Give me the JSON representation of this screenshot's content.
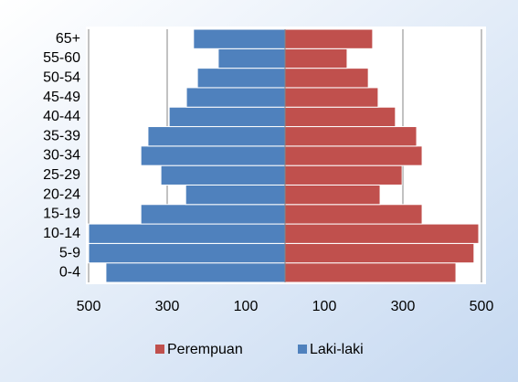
{
  "chart_data": {
    "type": "population-pyramid",
    "categories": [
      "0-4",
      "5-9",
      "10-14",
      "15-19",
      "20-24",
      "25-29",
      "30-34",
      "35-39",
      "40-44",
      "45-49",
      "50-54",
      "55-60",
      "65+"
    ],
    "series": [
      {
        "name": "Perempuan",
        "color": "#c0504d",
        "values": [
          435,
          481,
          493,
          349,
          242,
          298,
          349,
          335,
          281,
          237,
          212,
          158,
          223
        ]
      },
      {
        "name": "Laki-laki",
        "color": "#4f81bd",
        "values": [
          -456,
          -500,
          -500,
          -367,
          -253,
          -316,
          -367,
          -349,
          -295,
          -251,
          -223,
          -170,
          -233
        ]
      }
    ],
    "xlim": [
      -500,
      500
    ],
    "xticks": [
      {
        "value": -500,
        "label": "500"
      },
      {
        "value": -300,
        "label": "300"
      },
      {
        "value": -100,
        "label": "100"
      },
      {
        "value": 100,
        "label": "100"
      },
      {
        "value": 300,
        "label": "300"
      },
      {
        "value": 500,
        "label": "500"
      }
    ],
    "grid": true,
    "legend": "bottom"
  }
}
